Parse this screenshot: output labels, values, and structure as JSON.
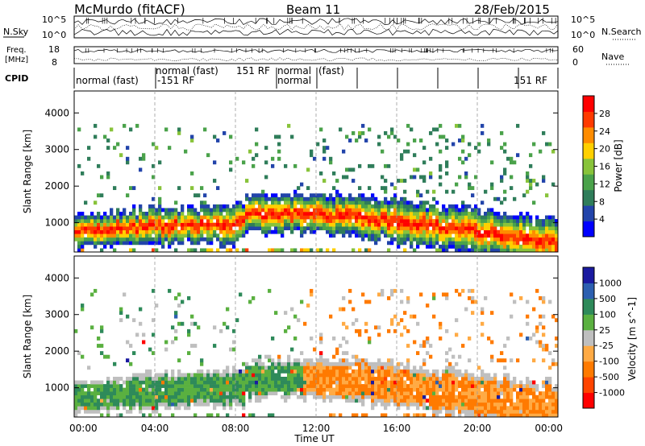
{
  "header": {
    "title": "McMurdo (fitACF)",
    "beam": "Beam 11",
    "date": "28/Feb/2015"
  },
  "noise_panel": {
    "left_label": "N.Sky",
    "right_label": "N.Search",
    "top_tick": "10^5",
    "bottom_tick": "10^0"
  },
  "freq_panel": {
    "left_label_1": "Freq.",
    "left_label_2": "[MHz]",
    "right_label": "Nave",
    "left_top_tick": "18",
    "left_bottom_tick": "8",
    "right_top_tick": "60",
    "right_bottom_tick": "0"
  },
  "cpid": {
    "label": "CPID",
    "entries": [
      "normal (fast)",
      "-151 RF",
      "normal (fast)",
      "151 RF",
      "normal",
      "normal",
      "(fast)",
      "151 RF"
    ]
  },
  "colors": {
    "power_scale": [
      "#0000ff",
      "#2244aa",
      "#2f7d5a",
      "#4aa24a",
      "#88c33a",
      "#ffd000",
      "#ff8c00",
      "#ff3a00",
      "#ff0000"
    ],
    "velocity_scale": [
      "#1a1aa0",
      "#2c5fb0",
      "#2e8a5a",
      "#5ab040",
      "#bfbfbf",
      "#ffaa44",
      "#ff7a00",
      "#ff4400",
      "#ff0000"
    ]
  },
  "chart_data": [
    {
      "type": "heatmap",
      "quantity": "Power",
      "ylabel": "Slant Range [km]",
      "yticks": [
        "1000",
        "2000",
        "3000",
        "4000"
      ],
      "ylim": [
        200,
        4600
      ],
      "colorbar_label": "Power [dB]",
      "colorbar_ticks": [
        "4",
        "8",
        "12",
        "16",
        "20",
        "24",
        "28"
      ],
      "colorbar_range": [
        0,
        32
      ]
    },
    {
      "type": "heatmap",
      "quantity": "Velocity",
      "ylabel": "Slant Range [km]",
      "yticks": [
        "1000",
        "2000",
        "3000",
        "4000"
      ],
      "ylim": [
        200,
        4600
      ],
      "colorbar_label": "Velocity [m s^-1]",
      "colorbar_ticks": [
        "1000",
        "500",
        "100",
        "25",
        "-25",
        "-100",
        "-500",
        "-1000"
      ]
    }
  ],
  "x_axis": {
    "label": "Time UT",
    "ticks": [
      "00:00",
      "04:00",
      "08:00",
      "12:00",
      "16:00",
      "20:00",
      "00:00"
    ]
  }
}
